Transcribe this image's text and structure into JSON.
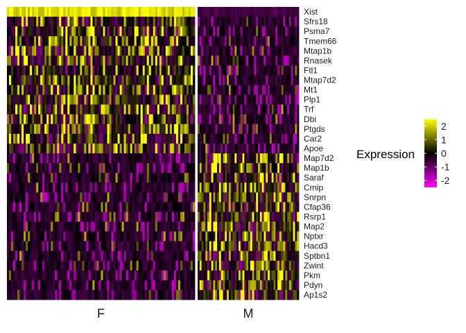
{
  "chart_data": {
    "type": "heatmap",
    "genes": [
      "Xist",
      "Sfrs18",
      "Psma7",
      "Tmem66",
      "Mtap1b",
      "Rnasek",
      "Ftl1",
      "Mtap7d2",
      "Mt1",
      "Plp1",
      "Trf",
      "Dbi",
      "Ptgds",
      "Car2",
      "Apoe",
      "Map7d2",
      "Map1b",
      "Saraf",
      "Cmip",
      "Snrpn",
      "Cfap36",
      "Rsrp1",
      "Map2",
      "Nptxr",
      "Hacd3",
      "Sptbn1",
      "Zwint",
      "Pkm",
      "Pdyn",
      "Ap1s2"
    ],
    "groups": [
      {
        "name": "F",
        "upregulated": [
          "Xist",
          "Sfrs18",
          "Psma7",
          "Tmem66",
          "Mtap1b",
          "Rnasek",
          "Ftl1",
          "Mtap7d2",
          "Mt1",
          "Plp1",
          "Trf",
          "Dbi",
          "Ptgds",
          "Car2",
          "Apoe"
        ]
      },
      {
        "name": "M",
        "upregulated": [
          "Map7d2",
          "Map1b",
          "Saraf",
          "Cmip",
          "Snrpn",
          "Cfap36",
          "Rsrp1",
          "Map2",
          "Nptxr",
          "Hacd3",
          "Sptbn1",
          "Zwint",
          "Pkm",
          "Pdyn",
          "Ap1s2"
        ]
      }
    ],
    "legend": {
      "title": "Expression",
      "ticks": [
        2,
        1,
        0,
        -1,
        -2
      ],
      "range": [
        -2.5,
        2.5
      ],
      "colors": {
        "low": "#FF00FF",
        "mid": "#000000",
        "high": "#FFFF00"
      },
      "placement": "right"
    }
  }
}
